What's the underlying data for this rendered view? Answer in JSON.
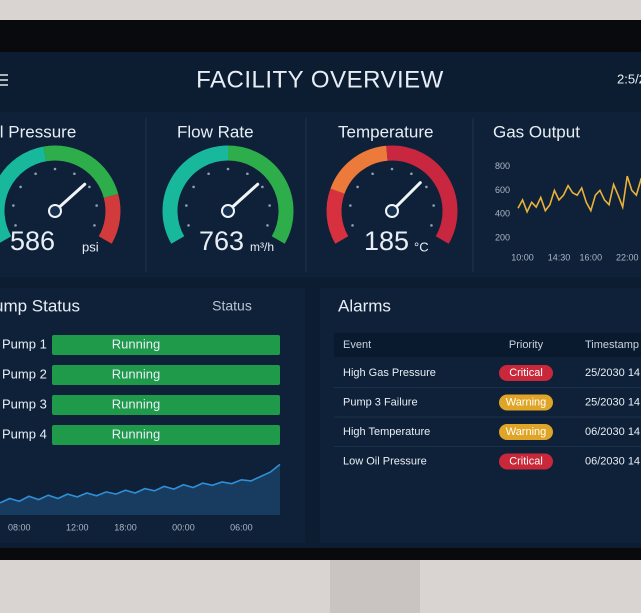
{
  "header": {
    "title": "FACILITY OVERVIEW",
    "clock": "2:5/2"
  },
  "gauges": [
    {
      "title": "il Pressure",
      "value": 586,
      "unit": "psi"
    },
    {
      "title": "Flow Rate",
      "value": 763,
      "unit": "m³/h"
    },
    {
      "title": "Temperature",
      "value": 185,
      "unit": "°C"
    }
  ],
  "pump_status": {
    "title": "ump Status",
    "status_header": "Status",
    "pumps": [
      {
        "name": "Pump 1",
        "status": "Running"
      },
      {
        "name": "Pump 2",
        "status": "Running"
      },
      {
        "name": "Pump 3",
        "status": "Running"
      },
      {
        "name": "Pump 4",
        "status": "Running"
      }
    ]
  },
  "alarms": {
    "title": "Alarms",
    "columns": [
      "Event",
      "Priority",
      "Timestamp"
    ],
    "rows": [
      {
        "event": "High Gas Pressure",
        "priority": "Critical",
        "priority_color": "#c8283a",
        "timestamp": "25/2030 14:"
      },
      {
        "event": "Pump 3 Failure",
        "priority": "Warning",
        "priority_color": "#e0a526",
        "timestamp": "25/2030 14:"
      },
      {
        "event": "High Temperature",
        "priority": "Warning",
        "priority_color": "#e0a526",
        "timestamp": "06/2030 14:"
      },
      {
        "event": "Low Oil Pressure",
        "priority": "Critical",
        "priority_color": "#c8283a",
        "timestamp": "06/2030 14:"
      }
    ]
  },
  "chart_data": [
    {
      "type": "line",
      "title": "Gas Output",
      "color": "#e8b23a",
      "categories": [
        null,
        "10:00",
        null,
        null,
        null,
        null,
        null,
        null,
        null,
        "14:30",
        null,
        null,
        null,
        null,
        null,
        null,
        "16:00",
        null,
        null,
        null,
        null,
        null,
        null,
        null,
        "22:00",
        null,
        null,
        null,
        null,
        null
      ],
      "values": [
        450,
        520,
        420,
        500,
        460,
        540,
        430,
        480,
        600,
        520,
        560,
        640,
        580,
        560,
        620,
        500,
        430,
        560,
        600,
        520,
        480,
        650,
        560,
        460,
        720,
        600,
        560,
        690,
        620,
        580
      ],
      "ylim": [
        100,
        880
      ],
      "yticks": [
        800,
        600,
        400,
        200
      ]
    },
    {
      "type": "area",
      "color": "#2f8fd6",
      "categories": [
        null,
        null,
        "08:00",
        null,
        null,
        null,
        null,
        null,
        "12:00",
        null,
        null,
        null,
        null,
        "18:00",
        null,
        null,
        null,
        null,
        null,
        "00:00",
        null,
        null,
        null,
        null,
        null,
        "06:00",
        null,
        null,
        null,
        null
      ],
      "values": [
        22,
        30,
        25,
        34,
        28,
        36,
        30,
        38,
        33,
        40,
        35,
        42,
        38,
        45,
        40,
        48,
        44,
        52,
        47,
        55,
        50,
        58,
        54,
        60,
        57,
        64,
        62,
        70,
        78,
        92
      ],
      "ylim": [
        0,
        100
      ]
    }
  ]
}
